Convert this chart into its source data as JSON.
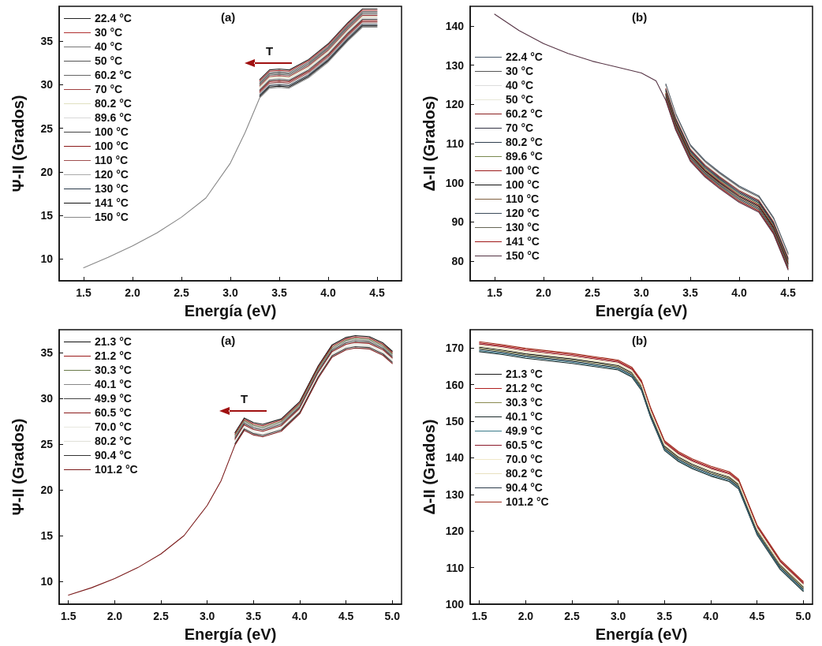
{
  "chart_data": [
    {
      "type": "line",
      "xlabel": "Energía (eV)",
      "ylabel": "Ψ-II (Grados)",
      "annotations": [
        "(a)",
        {
          "text": "T",
          "x": 3.4,
          "y": 31.7
        }
      ],
      "legend": "top left",
      "xlim": [
        1.25,
        4.75
      ],
      "xticks": [
        1.5,
        {
          "value": 2,
          "label": "2.0"
        },
        2.5,
        {
          "value": 3,
          "label": "3.0"
        },
        3.5,
        {
          "value": 4,
          "label": "4.0"
        },
        4.5
      ],
      "ylim": [
        7.5,
        39
      ],
      "yticks": [
        10,
        15,
        20,
        25,
        30,
        35
      ],
      "x": [
        1.5,
        1.75,
        2.0,
        2.25,
        2.5,
        2.75,
        3.0,
        3.15,
        3.3,
        3.4,
        3.5,
        3.6,
        3.8,
        4.0,
        4.2,
        4.35,
        4.5
      ],
      "series": [
        {
          "name": "22.4 °C",
          "color": "#222222",
          "values": [
            null,
            null,
            null,
            null,
            null,
            null,
            null,
            null,
            30.6,
            31.7,
            31.8,
            31.7,
            32.9,
            34.7,
            37.1,
            38.7,
            38.7
          ]
        },
        {
          "name": "30 °C",
          "color": "#b03030",
          "values": [
            null,
            null,
            null,
            null,
            null,
            null,
            null,
            null,
            30.45,
            31.55,
            31.65,
            31.55,
            32.75,
            34.55,
            36.95,
            38.55,
            38.55
          ]
        },
        {
          "name": "40 °C",
          "color": "#777777",
          "values": [
            null,
            null,
            null,
            null,
            null,
            null,
            null,
            null,
            30.3,
            31.4,
            31.5,
            31.4,
            32.6,
            34.4,
            36.8,
            38.4,
            38.4
          ]
        },
        {
          "name": "50 °C",
          "color": "#555555",
          "values": [
            null,
            null,
            null,
            null,
            null,
            null,
            null,
            null,
            30.15,
            31.25,
            31.35,
            31.25,
            32.45,
            34.25,
            36.65,
            38.25,
            38.25
          ]
        },
        {
          "name": "60.2 °C",
          "color": "#666666",
          "values": [
            null,
            null,
            null,
            null,
            null,
            null,
            null,
            null,
            30.0,
            31.1,
            31.2,
            31.1,
            32.3,
            34.1,
            36.5,
            38.1,
            38.1
          ]
        },
        {
          "name": "70 °C",
          "color": "#a04040",
          "values": [
            null,
            null,
            null,
            null,
            null,
            null,
            null,
            null,
            29.85,
            30.95,
            31.05,
            30.95,
            32.15,
            33.95,
            36.35,
            37.95,
            37.95
          ]
        },
        {
          "name": "80.2 °C",
          "color": "#e0e0c0",
          "values": [
            null,
            null,
            null,
            null,
            null,
            null,
            null,
            null,
            29.7,
            30.8,
            30.9,
            30.8,
            32.0,
            33.8,
            36.2,
            37.8,
            37.8
          ]
        },
        {
          "name": "89.6 °C",
          "color": "#d8d8d8",
          "values": [
            null,
            null,
            null,
            null,
            null,
            null,
            null,
            null,
            29.55,
            30.65,
            30.75,
            30.65,
            31.85,
            33.65,
            36.05,
            37.65,
            37.65
          ]
        },
        {
          "name": "100 °C",
          "color": "#444444",
          "values": [
            null,
            null,
            null,
            null,
            null,
            null,
            null,
            null,
            29.4,
            30.5,
            30.6,
            30.5,
            31.7,
            33.5,
            35.9,
            37.5,
            37.5
          ]
        },
        {
          "name": "100 °C",
          "color": "#8b1a1a",
          "values": [
            null,
            null,
            null,
            null,
            null,
            null,
            null,
            null,
            29.25,
            30.35,
            30.45,
            30.35,
            31.55,
            33.35,
            35.75,
            37.35,
            37.35
          ]
        },
        {
          "name": "110 °C",
          "color": "#a05050",
          "values": [
            null,
            null,
            null,
            null,
            null,
            null,
            null,
            null,
            29.1,
            30.2,
            30.3,
            30.2,
            31.4,
            33.2,
            35.6,
            37.2,
            37.2
          ]
        },
        {
          "name": "120 °C",
          "color": "#aaaaaa",
          "values": [
            null,
            null,
            null,
            null,
            null,
            null,
            null,
            null,
            28.95,
            30.05,
            30.15,
            30.05,
            31.25,
            33.05,
            35.45,
            37.05,
            37.05
          ]
        },
        {
          "name": "130 °C",
          "color": "#2a3a4a",
          "values": [
            null,
            null,
            null,
            null,
            null,
            null,
            null,
            null,
            28.8,
            29.9,
            30.0,
            29.9,
            31.1,
            32.9,
            35.3,
            36.9,
            36.9
          ]
        },
        {
          "name": "141 °C",
          "color": "#111111",
          "values": [
            null,
            null,
            null,
            null,
            null,
            null,
            null,
            null,
            28.65,
            29.75,
            29.85,
            29.75,
            30.95,
            32.75,
            35.15,
            36.75,
            36.75
          ]
        },
        {
          "name": "150 °C",
          "color": "#888888",
          "values": [
            9.0,
            10.2,
            11.5,
            13.0,
            14.8,
            17.0,
            21.0,
            24.5,
            28.5,
            29.6,
            29.7,
            29.6,
            30.8,
            32.6,
            35.0,
            36.6,
            36.6
          ]
        }
      ]
    },
    {
      "type": "line",
      "xlabel": "Energía (eV)",
      "ylabel": "Δ-II (Grados)",
      "annotations": [
        "(b)"
      ],
      "legend": "left",
      "xlim": [
        1.25,
        4.75
      ],
      "xticks": [
        1.5,
        {
          "value": 2,
          "label": "2.0"
        },
        2.5,
        {
          "value": 3,
          "label": "3.0"
        },
        3.5,
        {
          "value": 4,
          "label": "4.0"
        },
        4.5
      ],
      "ylim": [
        75,
        145
      ],
      "yticks": [
        80,
        90,
        100,
        110,
        120,
        130,
        140
      ],
      "x": [
        1.5,
        1.75,
        2.0,
        2.25,
        2.5,
        2.75,
        3.0,
        3.15,
        3.25,
        3.35,
        3.5,
        3.65,
        3.8,
        4.0,
        4.2,
        4.35,
        4.5
      ],
      "series": [
        {
          "name": "22.4 °C",
          "color": "#4a5a6a",
          "values": [
            null,
            null,
            null,
            null,
            null,
            null,
            null,
            null,
            125.2,
            117.7,
            109.7,
            105.7,
            102.7,
            99.2,
            96.7,
            91.2,
            82.0
          ]
        },
        {
          "name": "30 °C",
          "color": "#555555",
          "values": [
            null,
            null,
            null,
            null,
            null,
            null,
            null,
            null,
            124.9,
            117.4,
            109.4,
            105.4,
            102.4,
            98.9,
            96.4,
            90.9,
            81.7
          ]
        },
        {
          "name": "40 °C",
          "color": "#dddddd",
          "values": [
            null,
            null,
            null,
            null,
            null,
            null,
            null,
            null,
            124.6,
            117.1,
            109.1,
            105.1,
            102.1,
            98.6,
            96.1,
            90.6,
            81.4
          ]
        },
        {
          "name": "50 °C",
          "color": "#e8e8d8",
          "values": [
            null,
            null,
            null,
            null,
            null,
            null,
            null,
            null,
            124.3,
            116.8,
            108.8,
            104.8,
            101.8,
            98.3,
            95.8,
            90.3,
            81.1
          ]
        },
        {
          "name": "60.2 °C",
          "color": "#8b2020",
          "values": [
            null,
            null,
            null,
            null,
            null,
            null,
            null,
            null,
            124.0,
            116.5,
            108.5,
            104.5,
            101.5,
            98.0,
            95.5,
            90.0,
            80.8
          ]
        },
        {
          "name": "70 °C",
          "color": "#333344",
          "values": [
            null,
            null,
            null,
            null,
            null,
            null,
            null,
            null,
            123.7,
            116.2,
            108.2,
            104.2,
            101.2,
            97.7,
            95.2,
            89.7,
            80.5
          ]
        },
        {
          "name": "80.2 °C",
          "color": "#2e3e4e",
          "values": [
            null,
            null,
            null,
            null,
            null,
            null,
            null,
            null,
            123.4,
            115.9,
            107.9,
            103.9,
            100.9,
            97.4,
            94.9,
            89.4,
            80.2
          ]
        },
        {
          "name": "89.6 °C",
          "color": "#7a8a50",
          "values": [
            null,
            null,
            null,
            null,
            null,
            null,
            null,
            null,
            123.1,
            115.6,
            107.6,
            103.6,
            100.6,
            97.1,
            94.6,
            89.1,
            79.9
          ]
        },
        {
          "name": "100 °C",
          "color": "#9b1b1b",
          "values": [
            null,
            null,
            null,
            null,
            null,
            null,
            null,
            null,
            122.8,
            115.3,
            107.3,
            103.3,
            100.3,
            96.8,
            94.3,
            88.8,
            79.6
          ]
        },
        {
          "name": "100 °C",
          "color": "#111111",
          "values": [
            null,
            null,
            null,
            null,
            null,
            null,
            null,
            null,
            122.5,
            115.0,
            107.0,
            103.0,
            100.0,
            96.5,
            94.0,
            88.5,
            79.3
          ]
        },
        {
          "name": "110 °C",
          "color": "#806040",
          "values": [
            null,
            null,
            null,
            null,
            null,
            null,
            null,
            null,
            122.2,
            114.7,
            106.7,
            102.7,
            99.7,
            96.2,
            93.7,
            88.2,
            79.0
          ]
        },
        {
          "name": "120 °C",
          "color": "#3a4a5a",
          "values": [
            null,
            null,
            null,
            null,
            null,
            null,
            null,
            null,
            121.9,
            114.4,
            106.4,
            102.4,
            99.4,
            95.9,
            93.4,
            87.9,
            78.7
          ]
        },
        {
          "name": "130 °C",
          "color": "#666655",
          "values": [
            null,
            null,
            null,
            null,
            null,
            null,
            null,
            null,
            121.6,
            114.1,
            106.1,
            102.1,
            99.1,
            95.6,
            93.1,
            87.6,
            78.4
          ]
        },
        {
          "name": "141 °C",
          "color": "#a01818",
          "values": [
            null,
            null,
            null,
            null,
            null,
            null,
            null,
            null,
            121.3,
            113.8,
            105.8,
            101.8,
            98.8,
            95.3,
            92.8,
            87.3,
            78.1
          ]
        },
        {
          "name": "150 °C",
          "color": "#553344",
          "values": [
            143.0,
            138.8,
            135.5,
            133.0,
            131.0,
            129.5,
            128.0,
            126.0,
            121.0,
            113.5,
            105.5,
            101.5,
            98.5,
            95.0,
            92.5,
            87.0,
            77.8
          ]
        }
      ]
    },
    {
      "type": "line",
      "xlabel": "Energía (eV)",
      "ylabel": "Ψ-II (Grados)",
      "annotations": [
        "(a)",
        {
          "text": "T",
          "x": 3.4,
          "y": 27.85
        }
      ],
      "legend": "top left",
      "xlim": [
        1.4,
        5.1
      ],
      "xticks": [
        1.5,
        {
          "value": 2,
          "label": "2.0"
        },
        2.5,
        {
          "value": 3,
          "label": "3.0"
        },
        3.5,
        {
          "value": 4,
          "label": "4.0"
        },
        4.5,
        {
          "value": 5,
          "label": "5.0"
        }
      ],
      "ylim": [
        7.5,
        37.5
      ],
      "yticks": [
        10,
        15,
        20,
        25,
        30,
        35
      ],
      "x": [
        1.5,
        1.75,
        2.0,
        2.25,
        2.5,
        2.75,
        3.0,
        3.15,
        3.3,
        3.4,
        3.5,
        3.6,
        3.8,
        4.0,
        4.2,
        4.35,
        4.5,
        4.6,
        4.75,
        4.9,
        5.0
      ],
      "series": [
        {
          "name": "21.3 °C",
          "color": "#111111",
          "values": [
            null,
            null,
            null,
            null,
            null,
            null,
            null,
            null,
            26.25,
            27.85,
            27.35,
            27.15,
            27.75,
            29.65,
            33.55,
            35.85,
            36.65,
            36.85,
            36.75,
            36.05,
            35.15
          ]
        },
        {
          "name": "21.2 °C",
          "color": "#9b1b1b",
          "values": [
            null,
            null,
            null,
            null,
            null,
            null,
            null,
            null,
            26.1,
            27.7,
            27.2,
            27.0,
            27.6,
            29.5,
            33.4,
            35.7,
            36.5,
            36.7,
            36.6,
            35.9,
            35.0
          ]
        },
        {
          "name": "30.3 °C",
          "color": "#6b7b4b",
          "values": [
            null,
            null,
            null,
            null,
            null,
            null,
            null,
            null,
            25.95,
            27.55,
            27.05,
            26.85,
            27.45,
            29.35,
            33.25,
            35.55,
            36.35,
            36.55,
            36.45,
            35.75,
            34.85
          ]
        },
        {
          "name": "40.1 °C",
          "color": "#888888",
          "values": [
            null,
            null,
            null,
            null,
            null,
            null,
            null,
            null,
            25.8,
            27.4,
            26.9,
            26.7,
            27.3,
            29.2,
            33.1,
            35.4,
            36.2,
            36.4,
            36.3,
            35.6,
            34.7
          ]
        },
        {
          "name": "49.9 °C",
          "color": "#444444",
          "values": [
            null,
            null,
            null,
            null,
            null,
            null,
            null,
            null,
            25.65,
            27.25,
            26.75,
            26.55,
            27.15,
            29.05,
            32.95,
            35.25,
            36.05,
            36.25,
            36.15,
            35.45,
            34.55
          ]
        },
        {
          "name": "60.5 °C",
          "color": "#8b1a1a",
          "values": [
            null,
            null,
            null,
            null,
            null,
            null,
            null,
            null,
            25.5,
            27.1,
            26.6,
            26.4,
            27.0,
            28.9,
            32.8,
            35.1,
            35.9,
            36.1,
            36.0,
            35.3,
            34.4
          ]
        },
        {
          "name": "70.0 °C",
          "color": "#e8e8e0",
          "values": [
            null,
            null,
            null,
            null,
            null,
            null,
            null,
            null,
            25.35,
            26.95,
            26.45,
            26.25,
            26.85,
            28.75,
            32.65,
            34.95,
            35.75,
            35.95,
            35.85,
            35.15,
            34.25
          ]
        },
        {
          "name": "80.2 °C",
          "color": "#e0e0d8",
          "values": [
            null,
            null,
            null,
            null,
            null,
            null,
            null,
            null,
            25.2,
            26.8,
            26.3,
            26.1,
            26.7,
            28.6,
            32.5,
            34.8,
            35.6,
            35.8,
            35.7,
            35.0,
            34.1
          ]
        },
        {
          "name": "90.4 °C",
          "color": "#333333",
          "values": [
            null,
            null,
            null,
            null,
            null,
            null,
            null,
            null,
            25.05,
            26.65,
            26.15,
            25.95,
            26.55,
            28.45,
            32.35,
            34.65,
            35.45,
            35.65,
            35.55,
            34.85,
            33.95
          ]
        },
        {
          "name": "101.2 °C",
          "color": "#7b1b1b",
          "values": [
            8.5,
            9.3,
            10.3,
            11.5,
            13.0,
            15.0,
            18.3,
            21.0,
            24.9,
            26.5,
            26.0,
            25.8,
            26.4,
            28.3,
            32.2,
            34.5,
            35.3,
            35.5,
            35.4,
            34.7,
            33.8
          ]
        }
      ]
    },
    {
      "type": "line",
      "xlabel": "Energía (eV)",
      "ylabel": "Δ-II (Grados)",
      "annotations": [
        "(b)"
      ],
      "legend": "top left",
      "xlim": [
        1.4,
        5.1
      ],
      "xticks": [
        1.5,
        {
          "value": 2,
          "label": "2.0"
        },
        2.5,
        {
          "value": 3,
          "label": "3.0"
        },
        3.5,
        {
          "value": 4,
          "label": "4.0"
        },
        4.5,
        {
          "value": 5,
          "label": "5.0"
        }
      ],
      "ylim": [
        100,
        175
      ],
      "yticks": [
        100,
        110,
        120,
        130,
        140,
        150,
        160,
        170
      ],
      "x": [
        1.5,
        1.75,
        2.0,
        2.5,
        3.0,
        3.15,
        3.25,
        3.35,
        3.5,
        3.65,
        3.8,
        4.0,
        4.2,
        4.3,
        4.5,
        4.75,
        5.0
      ],
      "series": [
        {
          "name": "21.3 °C",
          "color": "#1a1a1a",
          "values": [
            170.2,
            169.4,
            168.4,
            167.0,
            165.2,
            163.2,
            159.7,
            152.2,
            143.2,
            140.2,
            138.2,
            136.2,
            134.7,
            132.7,
            120.2,
            110.7,
            104.7
          ]
        },
        {
          "name": "21.2 °C",
          "color": "#b02020",
          "values": [
            171.4,
            170.6,
            169.6,
            168.2,
            166.4,
            164.4,
            160.9,
            153.4,
            144.4,
            141.4,
            139.4,
            137.4,
            135.9,
            133.9,
            121.4,
            111.9,
            105.9
          ]
        },
        {
          "name": "30.3 °C",
          "color": "#8a8a50",
          "values": [
            169.9,
            169.1,
            168.1,
            166.7,
            164.9,
            162.9,
            159.4,
            151.9,
            142.9,
            139.9,
            137.9,
            135.9,
            134.4,
            132.4,
            119.9,
            110.4,
            104.4
          ]
        },
        {
          "name": "40.1 °C",
          "color": "#1a2a2a",
          "values": [
            169.0,
            168.2,
            167.2,
            165.8,
            164.0,
            162.0,
            158.5,
            151.0,
            142.0,
            139.0,
            137.0,
            135.0,
            133.5,
            131.5,
            119.0,
            109.5,
            103.5
          ]
        },
        {
          "name": "49.9 °C",
          "color": "#3a7a8a",
          "values": [
            169.3,
            168.5,
            167.5,
            166.1,
            164.3,
            162.3,
            158.8,
            151.3,
            142.3,
            139.3,
            137.3,
            135.3,
            133.8,
            131.8,
            119.3,
            109.8,
            103.8
          ]
        },
        {
          "name": "60.5 °C",
          "color": "#8b1a2a",
          "values": [
            171.1,
            170.3,
            169.3,
            167.9,
            166.1,
            164.1,
            160.6,
            153.1,
            144.1,
            141.1,
            139.1,
            137.1,
            135.6,
            133.6,
            121.1,
            111.6,
            105.6
          ]
        },
        {
          "name": "70.0 °C",
          "color": "#f0e8c8",
          "values": [
            170.8,
            170.0,
            169.0,
            167.6,
            165.8,
            163.8,
            160.3,
            152.8,
            143.8,
            140.8,
            138.8,
            136.8,
            135.3,
            133.3,
            120.8,
            111.3,
            105.3
          ]
        },
        {
          "name": "80.2 °C",
          "color": "#e8e0c0",
          "values": [
            170.5,
            169.7,
            168.7,
            167.3,
            165.5,
            163.5,
            160.0,
            152.5,
            143.5,
            140.5,
            138.5,
            136.5,
            135.0,
            133.0,
            120.5,
            111.0,
            105.0
          ]
        },
        {
          "name": "90.4 °C",
          "color": "#2a3a4a",
          "values": [
            169.6,
            168.8,
            167.8,
            166.4,
            164.6,
            162.6,
            159.1,
            151.6,
            142.6,
            139.6,
            137.6,
            135.6,
            134.1,
            132.1,
            119.6,
            110.1,
            104.1
          ]
        },
        {
          "name": "101.2 °C",
          "color": "#a03020",
          "values": [
            171.7,
            170.9,
            169.9,
            168.5,
            166.7,
            164.7,
            161.2,
            153.7,
            144.7,
            141.7,
            139.7,
            137.7,
            136.2,
            134.2,
            121.7,
            112.2,
            106.2
          ]
        }
      ]
    }
  ]
}
